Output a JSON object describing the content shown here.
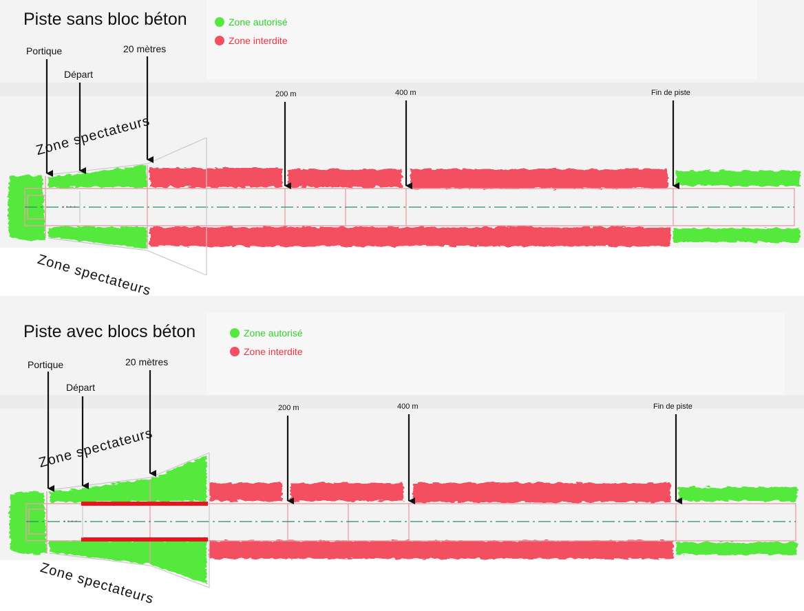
{
  "colors": {
    "allowed": "#55e83e",
    "forbidden": "#f25060",
    "allowed_text": "#2fd22a",
    "forbidden_text": "#ee3340",
    "track_outline": "#e8a0a8",
    "centerline": "#2a8a6a",
    "concrete_block": "#e8141e"
  },
  "panels": [
    {
      "title": "Piste sans bloc béton",
      "legend": {
        "allowed": "Zone autorisé",
        "forbidden": "Zone interdite"
      },
      "markers": {
        "portique": "Portique",
        "depart": "Départ",
        "vingt_metres": "20 mètres",
        "m200": "200 m",
        "m400": "400 m",
        "fin": "Fin de piste"
      },
      "zone_top": "Zone spectateurs",
      "zone_bottom": "Zone spectateurs",
      "concrete_blocks": false
    },
    {
      "title": "Piste avec blocs béton",
      "legend": {
        "allowed": "Zone autorisé",
        "forbidden": "Zone interdite"
      },
      "markers": {
        "portique": "Portique",
        "depart": "Départ",
        "vingt_metres": "20 mètres",
        "m200": "200 m",
        "m400": "400 m",
        "fin": "Fin de piste"
      },
      "zone_top": "Zone spectateurs",
      "zone_bottom": "Zone spectateurs",
      "concrete_blocks": true
    }
  ]
}
